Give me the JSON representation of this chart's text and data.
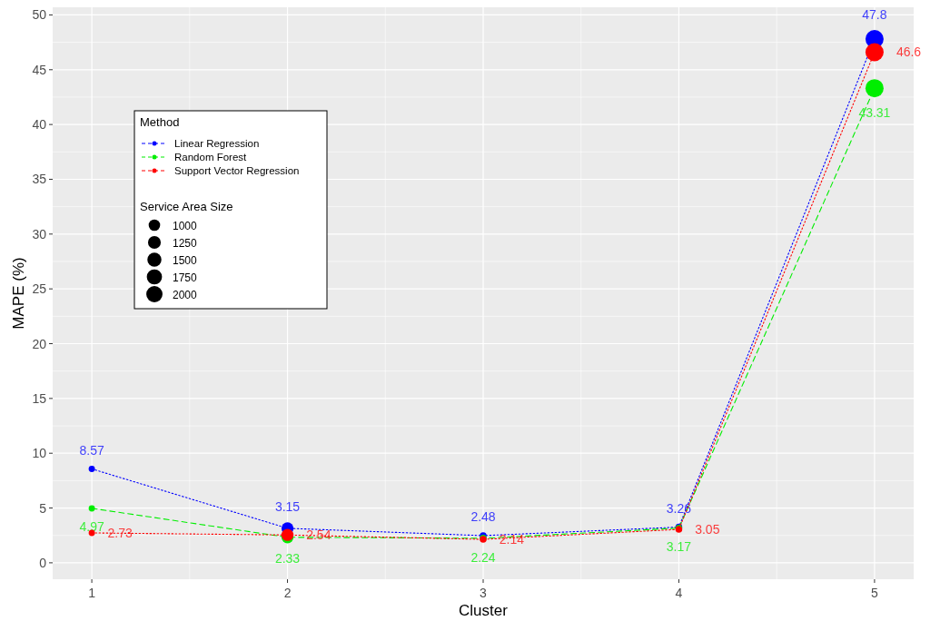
{
  "chart_data": {
    "type": "bubble",
    "xlabel": "Cluster",
    "ylabel": "MAPE (%)",
    "legend_title": "Method",
    "annotations": [
      "Service Area Size"
    ],
    "x": [
      1,
      2,
      3,
      4,
      5
    ],
    "size_legend": [
      1000,
      1250,
      1500,
      1750,
      2000
    ],
    "series": [
      {
        "name": "Linear Regression",
        "color": "#0000ff",
        "values": [
          8.57,
          3.15,
          2.48,
          3.26,
          47.8
        ],
        "sizes": [
          300,
          1100,
          350,
          350,
          2500
        ],
        "line_style": "dotted"
      },
      {
        "name": "Random Forest",
        "color": "#00ee00",
        "values": [
          4.97,
          2.33,
          2.24,
          3.17,
          43.31
        ],
        "sizes": [
          300,
          1100,
          350,
          350,
          2500
        ],
        "line_style": "dashed"
      },
      {
        "name": "Support Vector Regression",
        "color": "#ff0000",
        "values": [
          2.73,
          2.54,
          2.14,
          3.05,
          46.6
        ],
        "sizes": [
          300,
          1100,
          350,
          350,
          2500
        ],
        "line_style": "dotted"
      }
    ],
    "xlim": [
      0.8,
      5.2
    ],
    "xticks": [
      1,
      2,
      3,
      4,
      5
    ],
    "ylim": [
      -1.5,
      50.7
    ],
    "yticks": [
      0,
      5,
      10,
      15,
      20,
      25,
      30,
      35,
      40,
      45,
      50
    ],
    "grid": true,
    "legend": "top left",
    "marker": "circle",
    "data_labels": true
  }
}
